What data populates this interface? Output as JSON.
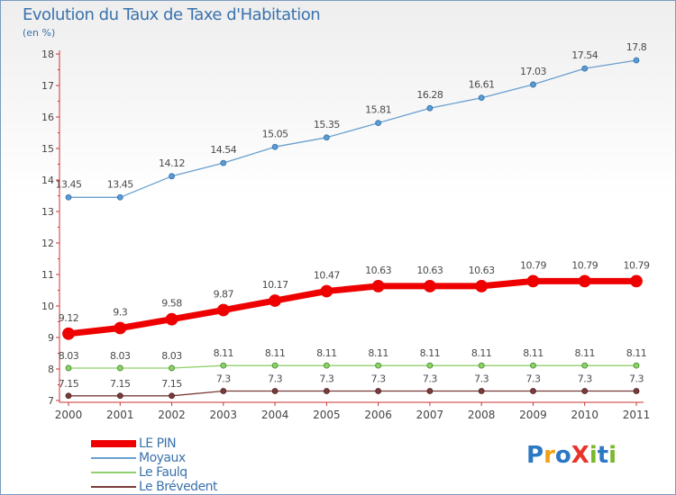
{
  "title": "Evolution du Taux de Taxe d'Habitation",
  "unit_label": "(en %)",
  "logo": {
    "text": "ProXiti",
    "letters": [
      "P",
      "r",
      "o",
      "X",
      "i",
      "t",
      "i"
    ],
    "colors": [
      "#2b78c4",
      "#f2a114",
      "#2b78c4",
      "#e8342a",
      "#7ab82c",
      "#2b78c4",
      "#7ab82c"
    ]
  },
  "chart_data": {
    "type": "line",
    "x": [
      "2000",
      "2001",
      "2002",
      "2003",
      "2004",
      "2005",
      "2006",
      "2007",
      "2008",
      "2009",
      "2010",
      "2011"
    ],
    "ylim": [
      7,
      18
    ],
    "yticks": [
      "7",
      "8",
      "9",
      "10",
      "11",
      "12",
      "13",
      "14",
      "15",
      "16",
      "17",
      "18"
    ],
    "grid": false,
    "series": [
      {
        "name": "LE PIN",
        "color": "#ee0000",
        "values": [
          9.12,
          9.3,
          9.58,
          9.87,
          10.17,
          10.47,
          10.63,
          10.63,
          10.63,
          10.79,
          10.79,
          10.79
        ],
        "labels": [
          "9.12",
          "9.3",
          "9.58",
          "9.87",
          "10.17",
          "10.47",
          "10.63",
          "10.63",
          "10.63",
          "10.79",
          "10.79",
          "10.79"
        ]
      },
      {
        "name": "Moyaux",
        "color": "#6a9fcf",
        "values": [
          13.45,
          13.45,
          14.12,
          14.54,
          15.05,
          15.35,
          15.81,
          16.28,
          16.61,
          17.03,
          17.54,
          17.8
        ],
        "labels": [
          "13.45",
          "13.45",
          "14.12",
          "14.54",
          "15.05",
          "15.35",
          "15.81",
          "16.28",
          "16.61",
          "17.03",
          "17.54",
          "17.8"
        ]
      },
      {
        "name": "Le Faulq",
        "color": "#8fd06a",
        "values": [
          8.03,
          8.03,
          8.03,
          8.11,
          8.11,
          8.11,
          8.11,
          8.11,
          8.11,
          8.11,
          8.11,
          8.11
        ],
        "labels": [
          "8.03",
          "8.03",
          "8.03",
          "8.11",
          "8.11",
          "8.11",
          "8.11",
          "8.11",
          "8.11",
          "8.11",
          "8.11",
          "8.11"
        ]
      },
      {
        "name": "Le Brévedent",
        "color": "#7a3b3b",
        "values": [
          7.15,
          7.15,
          7.15,
          7.3,
          7.3,
          7.3,
          7.3,
          7.3,
          7.3,
          7.3,
          7.3,
          7.3
        ],
        "labels": [
          "7.15",
          "7.15",
          "7.15",
          "7.3",
          "7.3",
          "7.3",
          "7.3",
          "7.3",
          "7.3",
          "7.3",
          "7.3",
          "7.3"
        ]
      }
    ]
  }
}
